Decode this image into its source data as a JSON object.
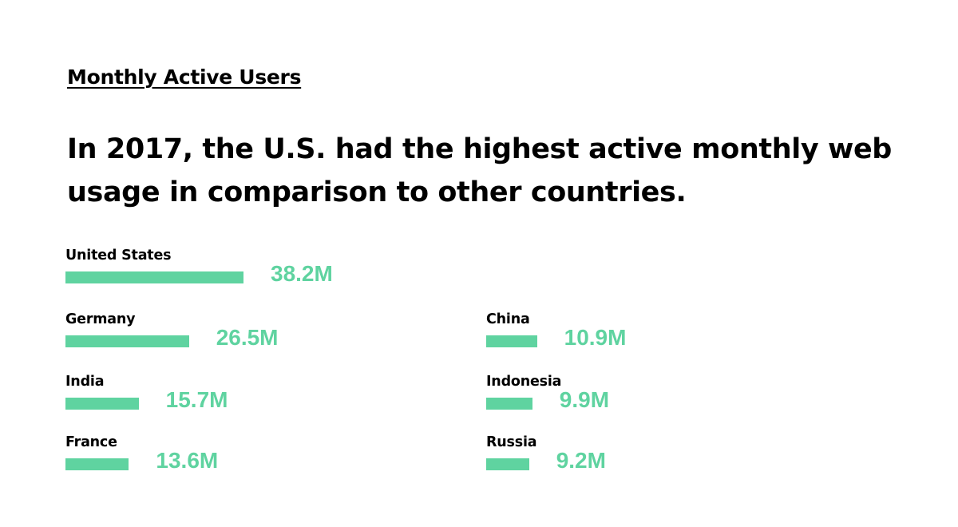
{
  "kicker": "Monthly Active Users",
  "headline": "In 2017, the U.S. had the highest active monthly web usage in comparison to other countries.",
  "colors": {
    "bar": "#5fd3a0",
    "text": "#000000"
  },
  "chart_data": {
    "type": "bar",
    "orientation": "horizontal",
    "categories": [
      "United States",
      "Germany",
      "India",
      "France",
      "China",
      "Indonesia",
      "Russia"
    ],
    "values": [
      38.2,
      26.5,
      15.7,
      13.6,
      10.9,
      9.9,
      9.2
    ],
    "value_labels": [
      "38.2M",
      "26.5M",
      "15.7M",
      "13.6M",
      "10.9M",
      "9.9M",
      "9.2M"
    ],
    "title": "Monthly Active Users",
    "subtitle": "In 2017, the U.S. had the highest active monthly web usage in comparison to other countries.",
    "grid": false,
    "legend": "none"
  }
}
